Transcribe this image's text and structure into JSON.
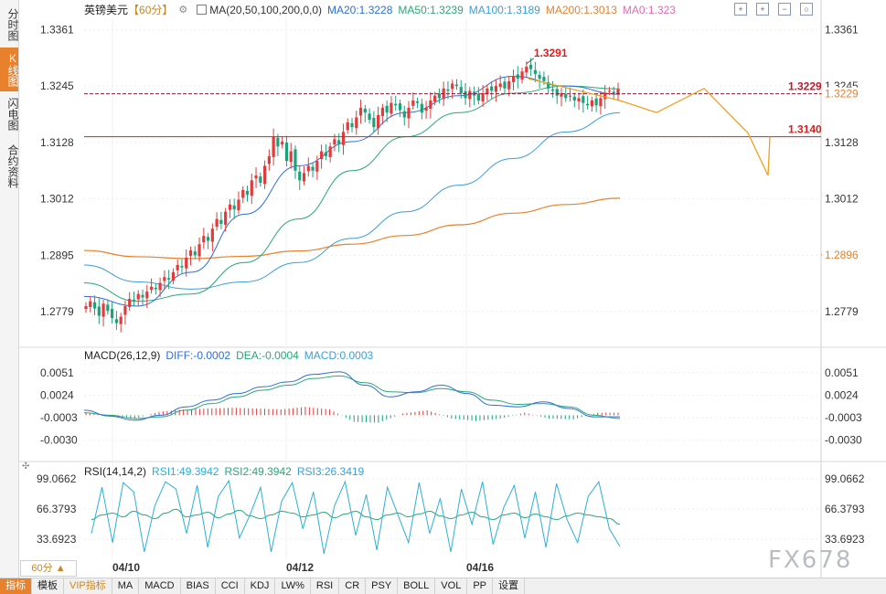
{
  "side_tabs": [
    "分时图",
    "K线图",
    "闪电图",
    "合约资料"
  ],
  "active_tab": 1,
  "header": {
    "instrument": "英镑美元",
    "period": "【60分】",
    "ma_label": "MA(20,50,100,200,0,0)",
    "ma_values": [
      {
        "text": "MA20:1.3228",
        "color": "#2e6fd6"
      },
      {
        "text": "MA50:1.3239",
        "color": "#2aa876"
      },
      {
        "text": "MA100:1.3189",
        "color": "#3b9fd6"
      },
      {
        "text": "MA200:1.3013",
        "color": "#e8812b"
      },
      {
        "text": "MA0:1.323",
        "color": "#e36bb0"
      }
    ]
  },
  "watermark": "FX678",
  "period_selector": "60分 ▲",
  "bottom_buttons": [
    "指标",
    "模板",
    "VIP指标",
    "MA",
    "MACD",
    "BIAS",
    "CCI",
    "KDJ",
    "LW%",
    "RSI",
    "CR",
    "PSY",
    "BOLL",
    "VOL",
    "PP",
    "设置"
  ],
  "colors": {
    "up": "#e23b3b",
    "down": "#1aa37a",
    "ma20": "#2e6fd6",
    "ma50": "#2aa876",
    "ma100": "#3b9fd6",
    "ma200": "#e8812b",
    "forecast": "#f0a020"
  },
  "chart_data": [
    {
      "type": "candlestick",
      "yaxis_ticks": [
        1.3361,
        1.3245,
        1.3128,
        1.3012,
        1.2895,
        1.2779
      ],
      "ylim": [
        1.272,
        1.3385
      ],
      "x_tick_labels": [
        "04/10",
        "04/12",
        "04/16"
      ],
      "high_annotation": {
        "label": "1.3291",
        "value": 1.3291
      },
      "levels": [
        {
          "label": "1.3229",
          "value": 1.3229,
          "style": "dashed",
          "color": "#8b1a3a"
        },
        {
          "label": "1.3140",
          "value": 1.314,
          "style": "solid",
          "color": "#d62020"
        }
      ],
      "right_markers": [
        {
          "label": "1.3229",
          "value": 1.3229,
          "color": "#e8812b"
        },
        {
          "label": "1.2896",
          "value": 1.2896,
          "color": "#e8812b"
        }
      ],
      "closes": [
        1.279,
        1.28,
        1.2785,
        1.277,
        1.2795,
        1.278,
        1.2765,
        1.2755,
        1.2768,
        1.279,
        1.2805,
        1.28,
        1.2815,
        1.2808,
        1.282,
        1.283,
        1.2825,
        1.2838,
        1.285,
        1.2845,
        1.286,
        1.2875,
        1.287,
        1.289,
        1.2905,
        1.2895,
        1.2918,
        1.2935,
        1.2925,
        1.295,
        1.297,
        1.296,
        1.2985,
        1.3,
        1.299,
        1.301,
        1.303,
        1.302,
        1.305,
        1.306,
        1.3045,
        1.308,
        1.31,
        1.314,
        1.312,
        1.313,
        1.309,
        1.311,
        1.307,
        1.305,
        1.3065,
        1.308,
        1.307,
        1.309,
        1.311,
        1.31,
        1.312,
        1.3135,
        1.3125,
        1.315,
        1.317,
        1.316,
        1.318,
        1.32,
        1.319,
        1.3175,
        1.316,
        1.3185,
        1.32,
        1.319,
        1.321,
        1.3205,
        1.3195,
        1.318,
        1.32,
        1.3215,
        1.321,
        1.319,
        1.32,
        1.3215,
        1.3225,
        1.322,
        1.324,
        1.3235,
        1.325,
        1.3245,
        1.323,
        1.322,
        1.3235,
        1.3225,
        1.3215,
        1.323,
        1.324,
        1.3235,
        1.3245,
        1.325,
        1.324,
        1.3255,
        1.3265,
        1.326,
        1.3275,
        1.3285,
        1.328,
        1.327,
        1.326,
        1.3255,
        1.324,
        1.3235,
        1.3225,
        1.323,
        1.322,
        1.3225,
        1.3215,
        1.322,
        1.321,
        1.3205,
        1.3215,
        1.3205,
        1.322,
        1.323,
        1.3235,
        1.323,
        1.3238
      ],
      "ma200": [
        1.2905,
        1.2892,
        1.2888,
        1.2893,
        1.2904,
        1.2918,
        1.2936,
        1.2958,
        1.2982,
        1.3,
        1.3013
      ],
      "ma100": [
        1.2875,
        1.284,
        1.2825,
        1.284,
        1.288,
        1.293,
        1.2985,
        1.304,
        1.3095,
        1.315,
        1.319
      ],
      "ma50": [
        1.2838,
        1.28,
        1.2815,
        1.288,
        1.297,
        1.307,
        1.314,
        1.319,
        1.323,
        1.3245,
        1.3239
      ],
      "ma20": [
        1.281,
        1.279,
        1.286,
        1.298,
        1.308,
        1.313,
        1.319,
        1.3225,
        1.3265,
        1.3245,
        1.3228
      ],
      "forecast": [
        1.326,
        1.3215,
        1.319,
        1.324,
        1.3148,
        1.306,
        1.314
      ]
    },
    {
      "type": "line",
      "title": "MACD(26,12,9)",
      "series_labels": [
        {
          "text": "DIFF:-0.0002",
          "color": "#2e6fd6"
        },
        {
          "text": "DEA:-0.0004",
          "color": "#2aa876"
        },
        {
          "text": "MACD:0.0003",
          "color": "#3b9fd6"
        }
      ],
      "yaxis_ticks": [
        "0.0051",
        "0.0024",
        "-0.0003",
        "-0.0030"
      ],
      "ylim": [
        -0.005,
        0.0065
      ],
      "diff": [
        0.0006,
        -0.0001,
        -0.0006,
        0.0,
        0.001,
        0.0018,
        0.0026,
        0.0034,
        0.004,
        0.0049,
        0.0052,
        0.0036,
        0.0022,
        0.0028,
        0.0036,
        0.0026,
        0.0012,
        0.001,
        0.0016,
        0.0008,
        -0.0002,
        -0.0002
      ],
      "dea": [
        0.0003,
        0.0,
        -0.0004,
        -0.0002,
        0.0006,
        0.0014,
        0.0022,
        0.003,
        0.0036,
        0.0044,
        0.0047,
        0.0039,
        0.0028,
        0.0027,
        0.0032,
        0.0028,
        0.0018,
        0.0013,
        0.0014,
        0.001,
        0.0,
        -0.0004
      ],
      "histogram": [
        0.0003,
        -0.0002,
        -0.0004,
        0.0004,
        0.0007,
        0.0008,
        0.0009,
        0.0008,
        0.0007,
        0.001,
        0.0007,
        -0.0008,
        -0.0009,
        0.0002,
        0.0006,
        -0.0004,
        -0.0007,
        -0.0004,
        0.0003,
        -0.0004,
        -0.0005,
        0.0003
      ]
    },
    {
      "type": "line",
      "title": "RSI(14,14,2)",
      "series_labels": [
        {
          "text": "RSI1:49.3942",
          "color": "#2ab0d6"
        },
        {
          "text": "RSI2:49.3942",
          "color": "#2aa876"
        },
        {
          "text": "RSI3:26.3419",
          "color": "#3b9fd6"
        }
      ],
      "yaxis_ticks": [
        "99.0662",
        "66.3793",
        "33.6923"
      ],
      "ylim": [
        12,
        105
      ],
      "rsi_fast": [
        40,
        90,
        30,
        95,
        85,
        20,
        70,
        96,
        88,
        40,
        92,
        25,
        80,
        97,
        35,
        60,
        90,
        20,
        75,
        95,
        45,
        85,
        18,
        70,
        96,
        38,
        82,
        22,
        90,
        60,
        30,
        95,
        40,
        78,
        20,
        88,
        50,
        96,
        28,
        68,
        92,
        35,
        85,
        25,
        94,
        55,
        30,
        80,
        96,
        45,
        26
      ],
      "rsi_slow": [
        55,
        60,
        62,
        58,
        64,
        60,
        56,
        62,
        66,
        58,
        60,
        63,
        57,
        61,
        65,
        59,
        56,
        60,
        64,
        62,
        58,
        60,
        63,
        57,
        61,
        64,
        58,
        55,
        60,
        62,
        58,
        61,
        64,
        59,
        56,
        60,
        63,
        58,
        55,
        60,
        62,
        57,
        61,
        58,
        55,
        59,
        62,
        60,
        58,
        56,
        50
      ]
    }
  ]
}
